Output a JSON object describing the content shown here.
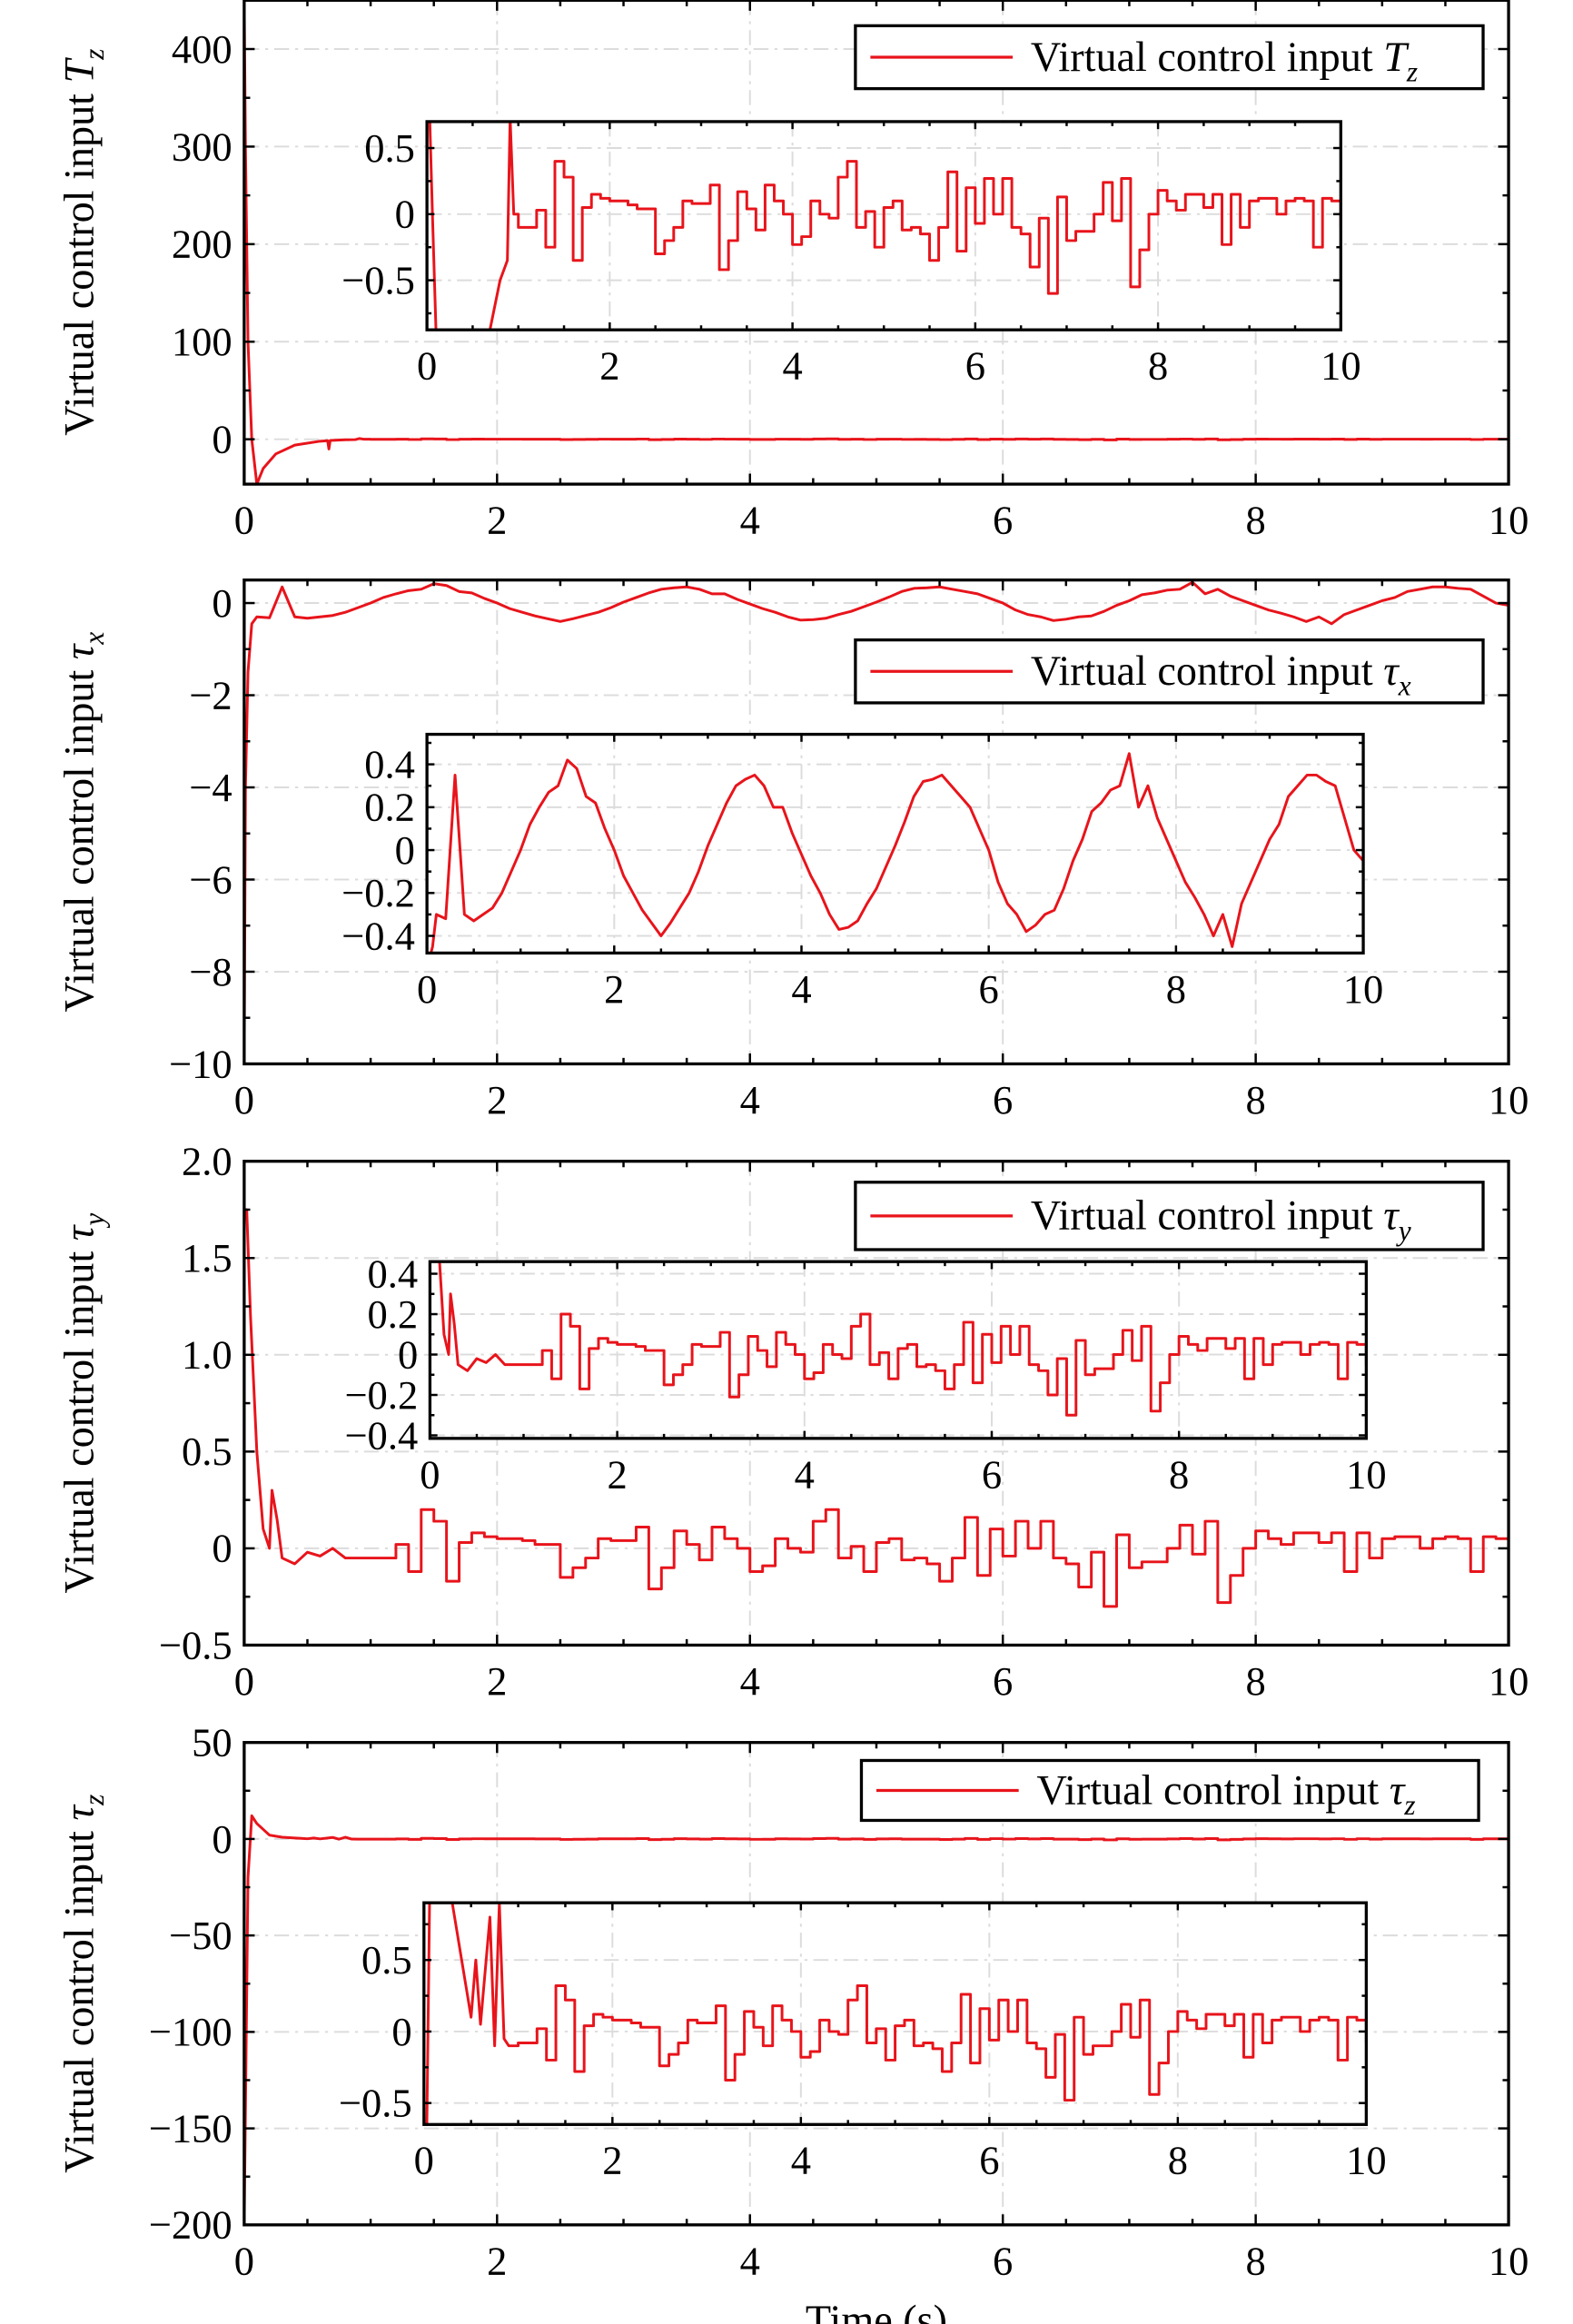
{
  "chart_data": {
    "type": "line",
    "xlabel": "Time (s)",
    "color": "#e8141b",
    "panels": [
      {
        "ylabel_text": "Virtual control input ",
        "symbol": "T",
        "sub": "z",
        "symbol_italic": true,
        "legend_text": "Virtual control input ",
        "xlim": [
          0,
          10
        ],
        "xticks": [
          0,
          2,
          4,
          6,
          8,
          10
        ],
        "ylim": [
          -46,
          450
        ],
        "yticks": [
          0,
          100,
          200,
          300,
          400
        ],
        "inset": {
          "xlim": [
            0,
            10
          ],
          "xticks": [
            0,
            2,
            4,
            6,
            8,
            10
          ],
          "ylim": [
            -0.875,
            0.7
          ],
          "yticks": [
            -0.5,
            0,
            0.5
          ],
          "ytick_labels": [
            "−0.5",
            "0",
            "0.5"
          ]
        },
        "style": "step",
        "transient": [
          [
            0,
            450
          ],
          [
            0.01,
            300
          ],
          [
            0.03,
            100
          ],
          [
            0.06,
            0
          ],
          [
            0.1,
            -46
          ],
          [
            0.15,
            -30
          ],
          [
            0.25,
            -15
          ],
          [
            0.4,
            -6
          ],
          [
            0.6,
            -2
          ],
          [
            0.66,
            -1.5
          ],
          [
            0.67,
            -10
          ],
          [
            0.68,
            -1.2
          ],
          [
            0.8,
            -0.5
          ],
          [
            0.88,
            -0.35
          ],
          [
            0.91,
            0.75
          ],
          [
            0.95,
            0.0
          ]
        ],
        "steps": {
          "start": 1.0,
          "dt": 0.1,
          "values": [
            -0.1,
            -0.1,
            0.03,
            -0.25,
            0.4,
            0.28,
            -0.35,
            0.05,
            0.15,
            0.12,
            0.1,
            0.1,
            0.07,
            0.04,
            0.04,
            -0.3,
            -0.2,
            -0.1,
            0.1,
            0.08,
            0.08,
            0.22,
            -0.42,
            -0.2,
            0.17,
            0.04,
            -0.12,
            0.22,
            0.1,
            0.0,
            -0.23,
            -0.17,
            0.1,
            0.0,
            -0.03,
            0.28,
            0.4,
            -0.1,
            0.02,
            -0.25,
            0.05,
            0.1,
            -0.12,
            -0.1,
            -0.15,
            -0.35,
            -0.1,
            0.32,
            -0.28,
            0.2,
            -0.07,
            0.27,
            0.0,
            0.27,
            -0.1,
            -0.15,
            -0.4,
            -0.03,
            -0.6,
            0.13,
            -0.2,
            -0.13,
            -0.13,
            0.0,
            0.24,
            -0.05,
            0.27,
            -0.55,
            -0.27,
            0.0,
            0.18,
            0.1,
            0.03,
            0.15,
            0.15,
            0.05,
            0.15,
            -0.23,
            0.15,
            -0.1,
            0.1,
            0.12,
            0.12,
            0.0,
            0.1,
            0.12,
            0.1,
            -0.25,
            0.12,
            0.1,
            -0.1
          ]
        }
      },
      {
        "ylabel_text": "Virtual control input ",
        "symbol": "τ",
        "sub": "x",
        "symbol_italic": true,
        "legend_text": "Virtual control input ",
        "xlim": [
          0,
          10
        ],
        "xticks": [
          0,
          2,
          4,
          6,
          8,
          10
        ],
        "ylim": [
          -10,
          0.5
        ],
        "yticks": [
          -10,
          -8,
          -6,
          -4,
          -2,
          0
        ],
        "inset": {
          "xlim": [
            0,
            10
          ],
          "xticks": [
            0,
            2,
            4,
            6,
            8,
            10
          ],
          "ylim": [
            -0.48,
            0.54
          ],
          "yticks": [
            -0.4,
            -0.2,
            0,
            0.2,
            0.4
          ],
          "ytick_labels": [
            "−0.4",
            "−0.2",
            "0",
            "0.2",
            "0.4"
          ]
        },
        "style": "linear",
        "transient": [
          [
            0,
            -10
          ],
          [
            0.01,
            -4
          ],
          [
            0.03,
            -1.5
          ],
          [
            0.06,
            -0.45
          ]
        ],
        "steps": {
          "start": 0.1,
          "dt": 0.1,
          "values": [
            -0.3,
            -0.32,
            0.35,
            -0.3,
            -0.33,
            -0.3,
            -0.27,
            -0.2,
            -0.1,
            0.0,
            0.12,
            0.2,
            0.27,
            0.3,
            0.42,
            0.38,
            0.25,
            0.22,
            0.1,
            0.0,
            -0.12,
            -0.2,
            -0.28,
            -0.34,
            -0.4,
            -0.34,
            -0.27,
            -0.2,
            -0.1,
            0.02,
            0.12,
            0.22,
            0.3,
            0.33,
            0.35,
            0.3,
            0.2,
            0.2,
            0.08,
            -0.02,
            -0.12,
            -0.2,
            -0.3,
            -0.37,
            -0.36,
            -0.33,
            -0.25,
            -0.18,
            -0.08,
            0.02,
            0.13,
            0.25,
            0.32,
            0.33,
            0.35,
            0.3,
            0.25,
            0.2,
            0.1,
            0.0,
            -0.15,
            -0.25,
            -0.3,
            -0.38,
            -0.35,
            -0.3,
            -0.28,
            -0.18,
            -0.05,
            0.05,
            0.18,
            0.22,
            0.28,
            0.3,
            0.45,
            0.2,
            0.3,
            0.15,
            0.05,
            -0.05,
            -0.15,
            -0.22,
            -0.3,
            -0.4,
            -0.3,
            -0.45,
            -0.25,
            -0.15,
            -0.05,
            0.05,
            0.12,
            0.25,
            0.3,
            0.35,
            0.35,
            0.32,
            0.3,
            0.15,
            0.0,
            -0.05
          ]
        }
      },
      {
        "ylabel_text": "Virtual control input ",
        "symbol": "τ",
        "sub": "y",
        "symbol_italic": true,
        "legend_text": "Virtual control input ",
        "xlim": [
          0,
          10
        ],
        "xticks": [
          0,
          2,
          4,
          6,
          8,
          10
        ],
        "ylim": [
          -0.5,
          2.0
        ],
        "yticks": [
          -0.5,
          0,
          0.5,
          1.0,
          1.5,
          2.0
        ],
        "ytick_labels": [
          "−0.5",
          "0",
          "0.5",
          "1.0",
          "1.5",
          "2.0"
        ],
        "inset": {
          "xlim": [
            0,
            10
          ],
          "xticks": [
            0,
            2,
            4,
            6,
            8,
            10
          ],
          "ylim": [
            -0.415,
            0.46
          ],
          "yticks": [
            -0.4,
            -0.2,
            0,
            0.2,
            0.4
          ],
          "ytick_labels": [
            "−0.4",
            "−0.2",
            "0",
            "0.2",
            "0.4"
          ]
        },
        "style": "step",
        "transient": [
          [
            0,
            1.75
          ],
          [
            0.02,
            1.75
          ],
          [
            0.05,
            1.2
          ],
          [
            0.1,
            0.5
          ],
          [
            0.15,
            0.1
          ],
          [
            0.2,
            0.0
          ],
          [
            0.22,
            0.3
          ],
          [
            0.26,
            0.15
          ],
          [
            0.3,
            -0.05
          ],
          [
            0.4,
            -0.08
          ],
          [
            0.5,
            -0.02
          ],
          [
            0.6,
            -0.04
          ],
          [
            0.7,
            0.0
          ],
          [
            0.8,
            -0.05
          ],
          [
            0.9,
            -0.05
          ]
        ],
        "steps": {
          "start": 1.0,
          "dt": 0.1,
          "values": [
            -0.05,
            -0.05,
            0.02,
            -0.12,
            0.2,
            0.14,
            -0.17,
            0.03,
            0.08,
            0.06,
            0.05,
            0.05,
            0.04,
            0.02,
            0.02,
            -0.15,
            -0.1,
            -0.05,
            0.05,
            0.04,
            0.04,
            0.11,
            -0.21,
            -0.1,
            0.09,
            0.02,
            -0.06,
            0.11,
            0.05,
            0.0,
            -0.12,
            -0.09,
            0.05,
            0.0,
            -0.02,
            0.14,
            0.2,
            -0.05,
            0.01,
            -0.12,
            0.03,
            0.05,
            -0.06,
            -0.05,
            -0.08,
            -0.17,
            -0.05,
            0.16,
            -0.14,
            0.1,
            -0.04,
            0.14,
            0.0,
            0.14,
            -0.05,
            -0.08,
            -0.2,
            -0.02,
            -0.3,
            0.07,
            -0.1,
            -0.07,
            -0.07,
            0.0,
            0.12,
            -0.03,
            0.14,
            -0.28,
            -0.14,
            0.0,
            0.09,
            0.05,
            0.02,
            0.08,
            0.08,
            0.03,
            0.08,
            -0.12,
            0.08,
            -0.05,
            0.05,
            0.06,
            0.06,
            0.0,
            0.05,
            0.06,
            0.05,
            -0.12,
            0.06,
            0.05,
            -0.05
          ]
        }
      },
      {
        "ylabel_text": "Virtual control input ",
        "symbol": "τ",
        "sub": "z",
        "symbol_italic": true,
        "legend_text": "Virtual control input ",
        "xlim": [
          0,
          10
        ],
        "xticks": [
          0,
          2,
          4,
          6,
          8,
          10
        ],
        "ylim": [
          -200,
          50
        ],
        "yticks": [
          -200,
          -150,
          -100,
          -50,
          0,
          50
        ],
        "inset": {
          "xlim": [
            0,
            10
          ],
          "xticks": [
            0,
            2,
            4,
            6,
            8,
            10
          ],
          "ylim": [
            -0.65,
            0.9
          ],
          "yticks": [
            -0.5,
            0,
            0.5
          ],
          "ytick_labels": [
            "−0.5",
            "0",
            "0.5"
          ]
        },
        "style": "step",
        "transient": [
          [
            0,
            -200
          ],
          [
            0.03,
            -20
          ],
          [
            0.06,
            12
          ],
          [
            0.1,
            8
          ],
          [
            0.2,
            2
          ],
          [
            0.3,
            0.9
          ],
          [
            0.4,
            0.5
          ],
          [
            0.45,
            0.3
          ],
          [
            0.5,
            0.1
          ],
          [
            0.55,
            0.5
          ],
          [
            0.6,
            0.05
          ],
          [
            0.7,
            0.8
          ],
          [
            0.75,
            -0.1
          ],
          [
            0.8,
            0.9
          ],
          [
            0.85,
            -0.05
          ],
          [
            0.9,
            -0.1
          ]
        ],
        "steps": {
          "start": 1.0,
          "dt": 0.1,
          "values": [
            -0.08,
            -0.08,
            0.02,
            -0.2,
            0.32,
            0.22,
            -0.28,
            0.04,
            0.12,
            0.1,
            0.08,
            0.08,
            0.06,
            0.03,
            0.03,
            -0.24,
            -0.16,
            -0.08,
            0.08,
            0.06,
            0.06,
            0.18,
            -0.34,
            -0.16,
            0.14,
            0.03,
            -0.1,
            0.18,
            0.08,
            0.0,
            -0.18,
            -0.14,
            0.08,
            0.0,
            -0.02,
            0.22,
            0.32,
            -0.08,
            0.02,
            -0.2,
            0.04,
            0.08,
            -0.1,
            -0.08,
            -0.12,
            -0.28,
            -0.08,
            0.26,
            -0.22,
            0.16,
            -0.06,
            0.22,
            0.0,
            0.22,
            -0.08,
            -0.12,
            -0.32,
            -0.02,
            -0.48,
            0.1,
            -0.16,
            -0.1,
            -0.1,
            0.0,
            0.19,
            -0.04,
            0.22,
            -0.44,
            -0.22,
            0.0,
            0.14,
            0.08,
            0.02,
            0.12,
            0.12,
            0.04,
            0.12,
            -0.18,
            0.12,
            -0.08,
            0.08,
            0.1,
            0.1,
            0.0,
            0.08,
            0.1,
            0.08,
            -0.2,
            0.1,
            0.08,
            -0.08
          ]
        }
      }
    ]
  }
}
